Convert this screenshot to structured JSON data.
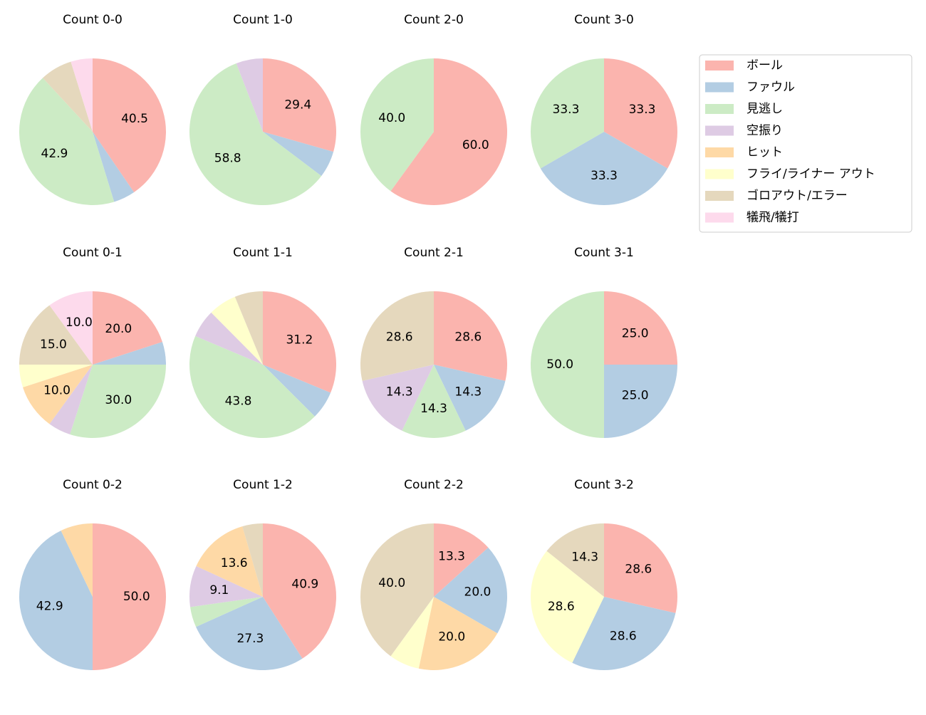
{
  "legend": {
    "labels": [
      "ボール",
      "ファウル",
      "見逃し",
      "空振り",
      "ヒット",
      "フライ/ライナー アウト",
      "ゴロアウト/エラー",
      "犠飛/犠打"
    ],
    "colors": [
      "#fbb4ae",
      "#b3cde3",
      "#ccebc5",
      "#decbe4",
      "#fed9a6",
      "#ffffcc",
      "#e5d8bd",
      "#fddaec"
    ],
    "position": "upper right"
  },
  "chart_data": [
    {
      "type": "pie",
      "title": "Count 0-0",
      "values": [
        40.5,
        4.8,
        42.9,
        0,
        0,
        0,
        7.1,
        4.8
      ],
      "value_labels": [
        "40.5",
        null,
        "42.9",
        null,
        null,
        null,
        null,
        null
      ]
    },
    {
      "type": "pie",
      "title": "Count 1-0",
      "values": [
        29.4,
        5.9,
        58.8,
        5.9,
        0,
        0,
        0,
        0
      ],
      "value_labels": [
        "29.4",
        null,
        "58.8",
        null,
        null,
        null,
        null,
        null
      ]
    },
    {
      "type": "pie",
      "title": "Count 2-0",
      "values": [
        60,
        0,
        40,
        0,
        0,
        0,
        0,
        0
      ],
      "value_labels": [
        "60.0",
        null,
        "40.0",
        null,
        null,
        null,
        null,
        null
      ]
    },
    {
      "type": "pie",
      "title": "Count 3-0",
      "values": [
        33.3,
        33.3,
        33.3,
        0,
        0,
        0,
        0,
        0
      ],
      "value_labels": [
        "33.3",
        "33.3",
        "33.3",
        null,
        null,
        null,
        null,
        null
      ]
    },
    {
      "type": "pie",
      "title": "Count 0-1",
      "values": [
        20,
        5,
        30,
        5,
        10,
        5,
        15,
        10
      ],
      "value_labels": [
        "20.0",
        null,
        "30.0",
        null,
        "10.0",
        null,
        "15.0",
        "10.0"
      ]
    },
    {
      "type": "pie",
      "title": "Count 1-1",
      "values": [
        31.2,
        6.2,
        43.8,
        6.2,
        0,
        6.2,
        6.2,
        0
      ],
      "value_labels": [
        "31.2",
        null,
        "43.8",
        null,
        null,
        null,
        null,
        null
      ]
    },
    {
      "type": "pie",
      "title": "Count 2-1",
      "values": [
        28.6,
        14.3,
        14.3,
        14.3,
        0,
        0,
        28.6,
        0
      ],
      "value_labels": [
        "28.6",
        "14.3",
        "14.3",
        "14.3",
        null,
        null,
        "28.6",
        null
      ]
    },
    {
      "type": "pie",
      "title": "Count 3-1",
      "values": [
        25,
        25,
        50,
        0,
        0,
        0,
        0,
        0
      ],
      "value_labels": [
        "25.0",
        "25.0",
        "50.0",
        null,
        null,
        null,
        null,
        null
      ]
    },
    {
      "type": "pie",
      "title": "Count 0-2",
      "values": [
        50,
        42.9,
        0,
        0,
        7.1,
        0,
        0,
        0
      ],
      "value_labels": [
        "50.0",
        "42.9",
        null,
        null,
        null,
        null,
        null,
        null
      ]
    },
    {
      "type": "pie",
      "title": "Count 1-2",
      "values": [
        40.9,
        27.3,
        4.5,
        9.1,
        13.6,
        0,
        4.5,
        0
      ],
      "value_labels": [
        "40.9",
        "27.3",
        null,
        "9.1",
        "13.6",
        null,
        null,
        null
      ]
    },
    {
      "type": "pie",
      "title": "Count 2-2",
      "values": [
        13.3,
        20,
        0,
        0,
        20,
        6.7,
        40,
        0
      ],
      "value_labels": [
        "13.3",
        "20.0",
        null,
        null,
        "20.0",
        null,
        "40.0",
        null
      ]
    },
    {
      "type": "pie",
      "title": "Count 3-2",
      "values": [
        28.6,
        28.6,
        0,
        0,
        0,
        28.6,
        14.3,
        0
      ],
      "value_labels": [
        "28.6",
        "28.6",
        null,
        null,
        null,
        "28.6",
        "14.3",
        null
      ]
    }
  ]
}
